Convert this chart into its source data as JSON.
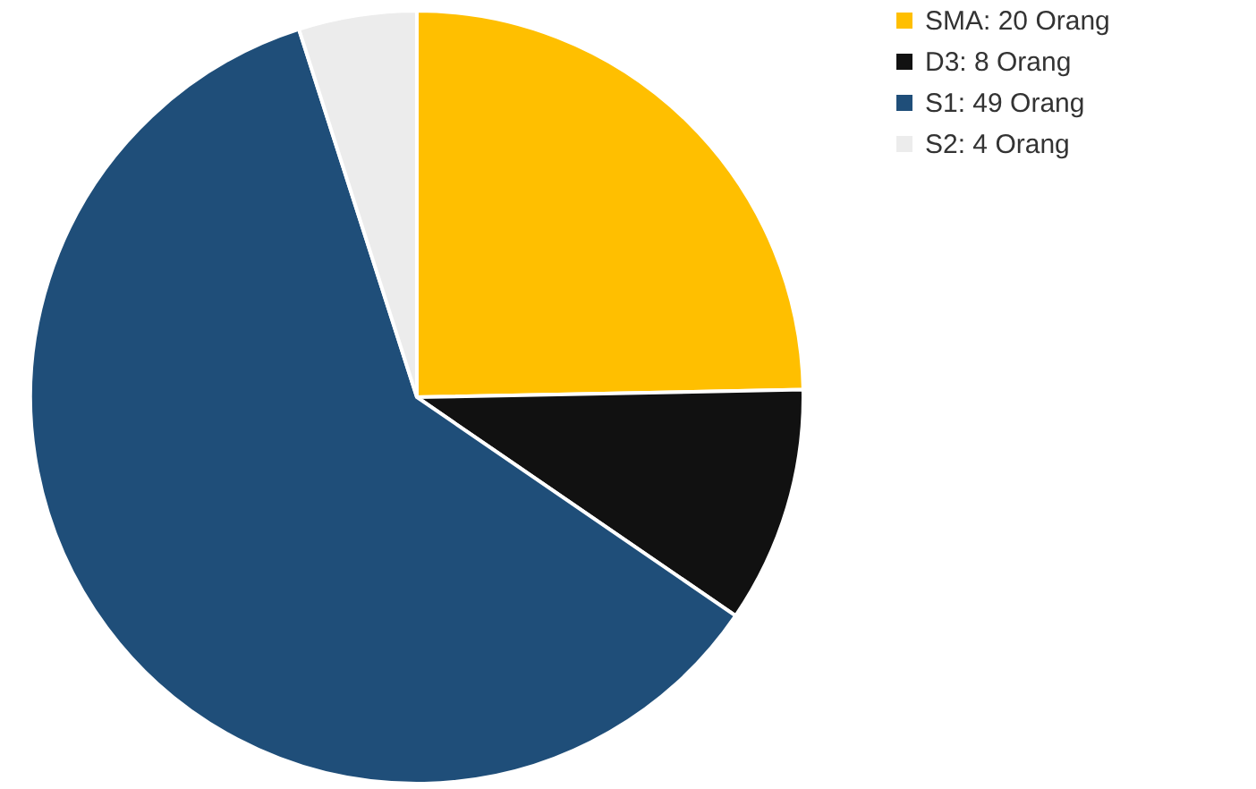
{
  "chart_data": {
    "type": "pie",
    "categories": [
      "SMA: 20 Orang",
      "D3: 8 Orang",
      "S1: 49 Orang",
      "S2: 4 Orang"
    ],
    "values": [
      20,
      8,
      49,
      4
    ],
    "colors": [
      "#ffbf00",
      "#111111",
      "#1f4e79",
      "#ececec"
    ],
    "legend": "right"
  }
}
